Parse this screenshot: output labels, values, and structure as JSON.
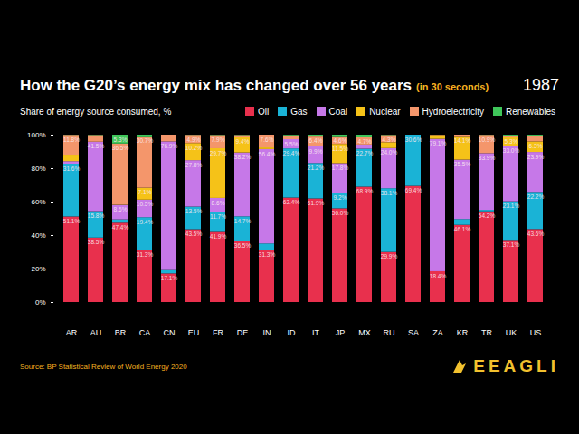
{
  "chart_data": {
    "type": "bar",
    "stacked": true,
    "data_labels": true,
    "grid": false,
    "legend": "top-right",
    "title": "How the G20’s energy mix has changed over 56 years",
    "title_note": "(in 30 seconds)",
    "date_label": "1987",
    "subtitle": "Share of energy source consumed, %",
    "source": "Source: BP Statistical Review of World Energy 2020",
    "logo_text": "EEAGLI",
    "categories": [
      "AR",
      "AU",
      "BR",
      "CA",
      "CN",
      "EU",
      "FR",
      "DE",
      "IN",
      "ID",
      "IT",
      "JP",
      "MX",
      "RU",
      "SA",
      "ZA",
      "KR",
      "TR",
      "UK",
      "US"
    ],
    "ylim": [
      0,
      100
    ],
    "yticks": [
      {
        "value": 0,
        "label": "0%"
      },
      {
        "value": 20,
        "label": "20%"
      },
      {
        "value": 40,
        "label": "40%"
      },
      {
        "value": 60,
        "label": "60%"
      },
      {
        "value": 80,
        "label": "80%"
      },
      {
        "value": 100,
        "label": "100%"
      }
    ],
    "series": [
      {
        "name": "Oil",
        "color": "#e8304d",
        "values": [
          51.1,
          38.5,
          47.4,
          31.3,
          17.1,
          43.5,
          41.9,
          36.5,
          31.3,
          62.4,
          61.9,
          56.0,
          68.9,
          29.9,
          69.4,
          18.4,
          46.1,
          54.2,
          37.1,
          43.6
        ],
        "value_labels": [
          "51.1%",
          "38.5%",
          "47.4%",
          "31.3%",
          "17.1%",
          "43.5%",
          "41.9%",
          "36.5%",
          "31.3%",
          "62.4%",
          "61.9%",
          "56.0%",
          "68.9%",
          "29.9%",
          "69.4%",
          "18.4%",
          "46.1%",
          "54.2%",
          "37.1%",
          "43.6%"
        ]
      },
      {
        "name": "Gas",
        "color": "#1ab3d6",
        "values": [
          31.6,
          15.8,
          2.0,
          19.4,
          2.0,
          13.5,
          11.7,
          14.7,
          3.7,
          29.4,
          21.2,
          9.2,
          22.7,
          38.1,
          30.6,
          0,
          3.5,
          0.9,
          23.1,
          22.2
        ],
        "value_labels": [
          "31.6%",
          "15.8%",
          null,
          "19.4%",
          null,
          "13.5%",
          "11.7%",
          "14.7%",
          null,
          "29.4%",
          "21.2%",
          "9.2%",
          "22.7%",
          "38.1%",
          "30.6%",
          null,
          null,
          null,
          "23.1%",
          "22.2%"
        ]
      },
      {
        "name": "Coal",
        "color": "#c678e8",
        "values": [
          1.5,
          41.5,
          8.6,
          10.5,
          76.9,
          27.8,
          8.6,
          38.2,
          56.4,
          5.5,
          9.9,
          17.8,
          2.5,
          24.0,
          0,
          79.1,
          35.5,
          33.9,
          33.0,
          23.9
        ],
        "value_labels": [
          null,
          "41.5%",
          "8.6%",
          "10.5%",
          "76.9%",
          "27.8%",
          "8.6%",
          "38.2%",
          "56.4%",
          "5.5%",
          "9.9%",
          "17.8%",
          null,
          "24.0%",
          null,
          "79.1%",
          "35.5%",
          "33.9%",
          "33.0%",
          "23.9%"
        ]
      },
      {
        "name": "Nuclear",
        "color": "#f5c218",
        "values": [
          3.9,
          0,
          0.2,
          7.1,
          0,
          10.2,
          29.7,
          9.4,
          1.0,
          0,
          0,
          11.5,
          0,
          3.5,
          0,
          2.3,
          14.1,
          0,
          5.3,
          6.3
        ],
        "value_labels": [
          null,
          null,
          null,
          "7.1%",
          null,
          "10.2%",
          "29.7%",
          "9.4%",
          null,
          null,
          null,
          "11.5%",
          null,
          null,
          null,
          null,
          "14.1%",
          null,
          "5.3%",
          "6.3%"
        ]
      },
      {
        "name": "Hydroelectricity",
        "color": "#f4966b",
        "values": [
          11.8,
          4.0,
          36.5,
          30.7,
          4.0,
          4.9,
          7.9,
          1.0,
          7.6,
          2.3,
          6.4,
          4.6,
          4.7,
          4.3,
          0,
          0.2,
          0.8,
          10.9,
          1.0,
          3.5
        ],
        "value_labels": [
          "11.8%",
          null,
          "36.5%",
          "30.7%",
          null,
          "4.9%",
          "7.9%",
          null,
          "7.6%",
          null,
          "6.4%",
          "4.6%",
          "4.7%",
          "4.3%",
          null,
          null,
          null,
          "10.9%",
          null,
          null
        ]
      },
      {
        "name": "Renewables",
        "color": "#3fc65a",
        "values": [
          0.1,
          0.2,
          5.3,
          1.0,
          0,
          0.1,
          0.2,
          0.2,
          0,
          0.4,
          0.6,
          0.9,
          1.2,
          0.2,
          0,
          0,
          0,
          0.1,
          0.5,
          0.5
        ],
        "value_labels": [
          null,
          null,
          "5.3%",
          null,
          null,
          null,
          null,
          null,
          null,
          null,
          null,
          null,
          null,
          null,
          null,
          null,
          null,
          null,
          null,
          null
        ]
      }
    ]
  }
}
